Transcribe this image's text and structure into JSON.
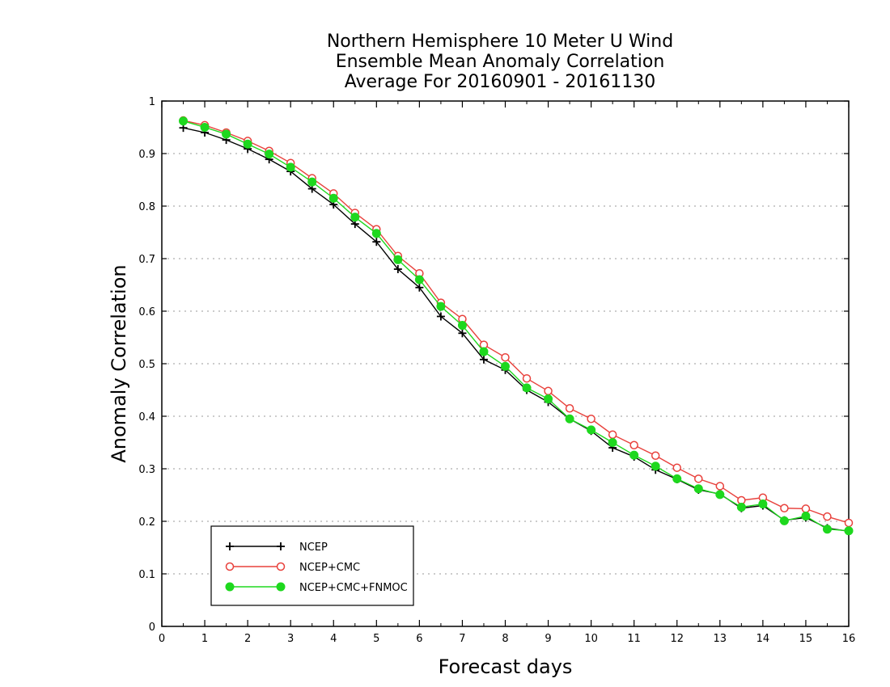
{
  "chart_data": {
    "type": "line",
    "title_lines": [
      "Northern Hemisphere 10 Meter U Wind",
      "Ensemble Mean Anomaly Correlation",
      "Average For 20160901 - 20161130"
    ],
    "xlabel": "Forecast days",
    "ylabel": "Anomaly Correlation",
    "xlim": [
      0,
      16
    ],
    "ylim": [
      0,
      1
    ],
    "xticks": [
      "0",
      "1",
      "2",
      "3",
      "4",
      "5",
      "6",
      "7",
      "8",
      "9",
      "10",
      "11",
      "12",
      "13",
      "14",
      "15",
      "16"
    ],
    "yticks": [
      "0",
      "0.1",
      "0.2",
      "0.3",
      "0.4",
      "0.5",
      "0.6",
      "0.7",
      "0.8",
      "0.9",
      "1"
    ],
    "grid": "horizontal-dotted",
    "legend_position": "bottom-left",
    "x": [
      0.5,
      1,
      1.5,
      2,
      2.5,
      3,
      3.5,
      4,
      4.5,
      5,
      5.5,
      6,
      6.5,
      7,
      7.5,
      8,
      8.5,
      9,
      9.5,
      10,
      10.5,
      11,
      11.5,
      12,
      12.5,
      13,
      13.5,
      14,
      14.5,
      15,
      15.5,
      16
    ],
    "series": [
      {
        "name": "NCEP",
        "color": "#000000",
        "marker": "plus",
        "values": [
          0.949,
          0.94,
          0.926,
          0.909,
          0.889,
          0.866,
          0.833,
          0.803,
          0.766,
          0.732,
          0.68,
          0.645,
          0.59,
          0.558,
          0.508,
          0.488,
          0.45,
          0.427,
          0.395,
          0.372,
          0.34,
          0.323,
          0.298,
          0.28,
          0.26,
          0.252,
          0.225,
          0.23,
          0.202,
          0.207,
          0.187,
          0.181
        ]
      },
      {
        "name": "NCEP+CMC",
        "color": "#e8413c",
        "marker": "open-circle",
        "values": [
          0.963,
          0.954,
          0.94,
          0.924,
          0.905,
          0.882,
          0.853,
          0.824,
          0.787,
          0.756,
          0.705,
          0.672,
          0.616,
          0.585,
          0.536,
          0.512,
          0.472,
          0.448,
          0.415,
          0.395,
          0.365,
          0.345,
          0.325,
          0.302,
          0.281,
          0.267,
          0.24,
          0.245,
          0.225,
          0.224,
          0.209,
          0.197
        ]
      },
      {
        "name": "NCEP+CMC+FNMOC",
        "color": "#1ed81e",
        "marker": "filled-circle",
        "values": [
          0.962,
          0.95,
          0.937,
          0.918,
          0.899,
          0.874,
          0.846,
          0.815,
          0.779,
          0.748,
          0.698,
          0.66,
          0.609,
          0.573,
          0.523,
          0.495,
          0.454,
          0.433,
          0.395,
          0.374,
          0.35,
          0.326,
          0.305,
          0.281,
          0.262,
          0.251,
          0.227,
          0.233,
          0.201,
          0.21,
          0.185,
          0.182
        ]
      }
    ]
  }
}
